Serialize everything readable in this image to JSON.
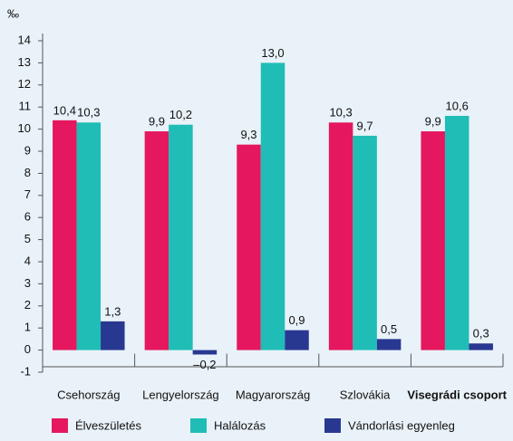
{
  "chart_data": {
    "type": "bar",
    "unit": "‰",
    "categories": [
      "Csehország",
      "Lengyelország",
      "Magyarország",
      "Szlovákia",
      "Visegrádi csoport"
    ],
    "bold_category_index": 4,
    "series": [
      {
        "name": "Élveszületés",
        "color": "#e5175e",
        "values": [
          10.4,
          9.9,
          9.3,
          10.3,
          9.9
        ],
        "value_labels": [
          "10,4",
          "9,9",
          "9,3",
          "10,3",
          "9,9"
        ]
      },
      {
        "name": "Halálozás",
        "color": "#1fbdb5",
        "values": [
          10.3,
          10.2,
          13.0,
          9.7,
          10.6
        ],
        "value_labels": [
          "10,3",
          "10,2",
          "13,0",
          "9,7",
          "10,6"
        ]
      },
      {
        "name": "Vándorlási egyenleg",
        "color": "#283891",
        "values": [
          1.3,
          -0.2,
          0.9,
          0.5,
          0.3
        ],
        "value_labels": [
          "1,3",
          "–0,2",
          "0,9",
          "0,5",
          "0,3"
        ]
      }
    ],
    "ylim": [
      -1,
      14
    ],
    "yticks": [
      -1,
      0,
      1,
      2,
      3,
      4,
      5,
      6,
      7,
      8,
      9,
      10,
      11,
      12,
      13,
      14
    ],
    "grid": false
  }
}
